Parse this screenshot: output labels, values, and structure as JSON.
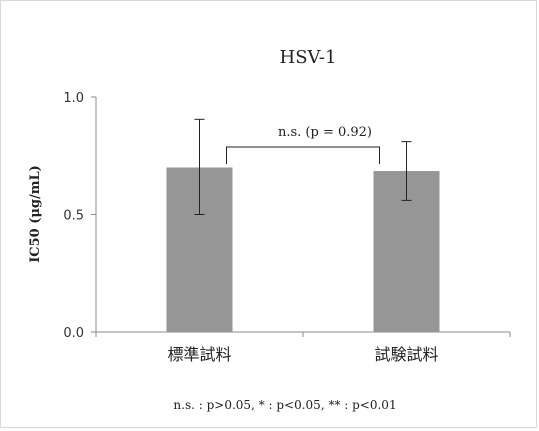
{
  "chart_data": {
    "type": "bar",
    "title": "HSV-1",
    "ylabel": "IC50 (μg/mL)",
    "xlabel": "",
    "categories": [
      "標準試料",
      "試験試料"
    ],
    "values": [
      0.7,
      0.685
    ],
    "error_upper": [
      0.905,
      0.81
    ],
    "error_lower": [
      0.5,
      0.56
    ],
    "ylim": [
      0.0,
      1.0
    ],
    "yticks": [
      "0.0",
      "0.5",
      "1.0"
    ],
    "grid": false,
    "bar_color": "#969696",
    "significance": {
      "label": "n.s. (p = 0.92)",
      "between": [
        0,
        1
      ]
    },
    "footnote": "n.s. : p>0.05, * : p<0.05, ** : p<0.01"
  }
}
